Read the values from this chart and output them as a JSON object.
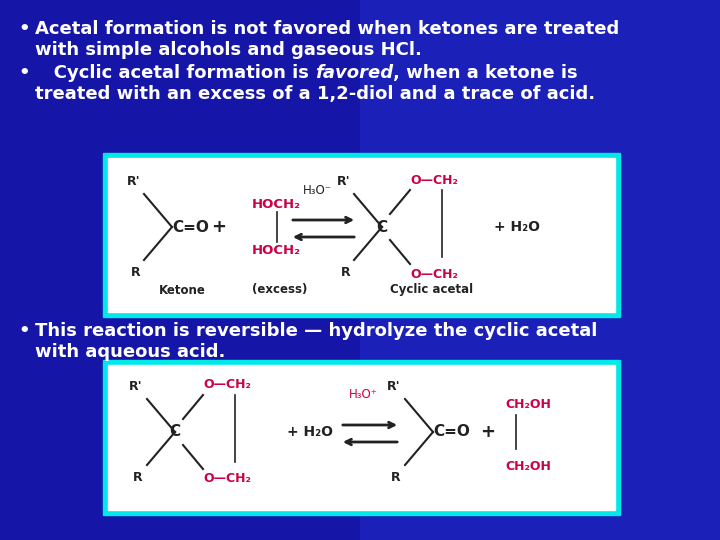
{
  "bg_color": "#1515a8",
  "text_color": "#ffffff",
  "bullet1_line1": "Acetal formation is not favored when ketones are treated",
  "bullet1_line2": "with simple alcohols and gaseous HCl.",
  "bullet2_prefix": "   Cyclic acetal formation is ",
  "bullet2_italic": "favored",
  "bullet2_suffix": ", when a ketone is",
  "bullet2_line2": "treated with an excess of a 1,2-diol and a trace of acid.",
  "bullet3_line1": "This reaction is reversible — hydrolyze the cyclic acetal",
  "bullet3_line2": "with aqueous acid.",
  "box_border_color": "#00e8e8",
  "box_fill_color": "#ffffff",
  "gray": "#222222",
  "pink": "#cc0044",
  "font_size": 13.0
}
